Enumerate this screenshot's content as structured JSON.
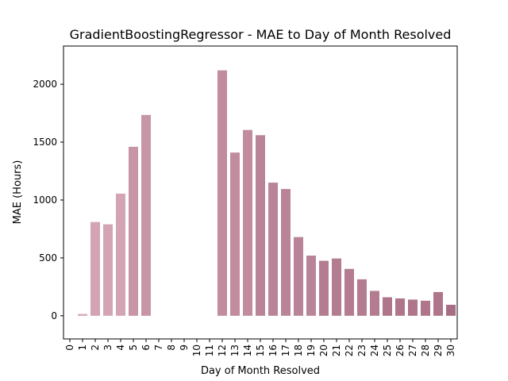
{
  "chart_data": {
    "type": "bar",
    "title": "GradientBoostingRegressor - MAE to Day of Month Resolved",
    "xlabel": "Day of Month Resolved",
    "ylabel": "MAE (Hours)",
    "categories": [
      "0",
      "1",
      "2",
      "3",
      "4",
      "5",
      "6",
      "7",
      "8",
      "9",
      "10",
      "11",
      "12",
      "13",
      "14",
      "15",
      "16",
      "17",
      "18",
      "19",
      "20",
      "21",
      "22",
      "23",
      "24",
      "25",
      "26",
      "27",
      "28",
      "29",
      "30"
    ],
    "values": [
      0,
      15,
      810,
      790,
      1055,
      1460,
      1735,
      0,
      0,
      0,
      0,
      0,
      2120,
      1410,
      1605,
      1560,
      1150,
      1095,
      680,
      520,
      475,
      495,
      405,
      315,
      215,
      160,
      150,
      140,
      130,
      205,
      95
    ],
    "ylim": [
      -200,
      2330
    ],
    "yticks": [
      0,
      500,
      1000,
      1500,
      2000
    ],
    "grid": false,
    "colors": [
      "#d3a5b4",
      "#c795a6",
      "#c08c9e",
      "#ba8498",
      "#b47c91",
      "#ae758b",
      "#a86d85"
    ]
  }
}
